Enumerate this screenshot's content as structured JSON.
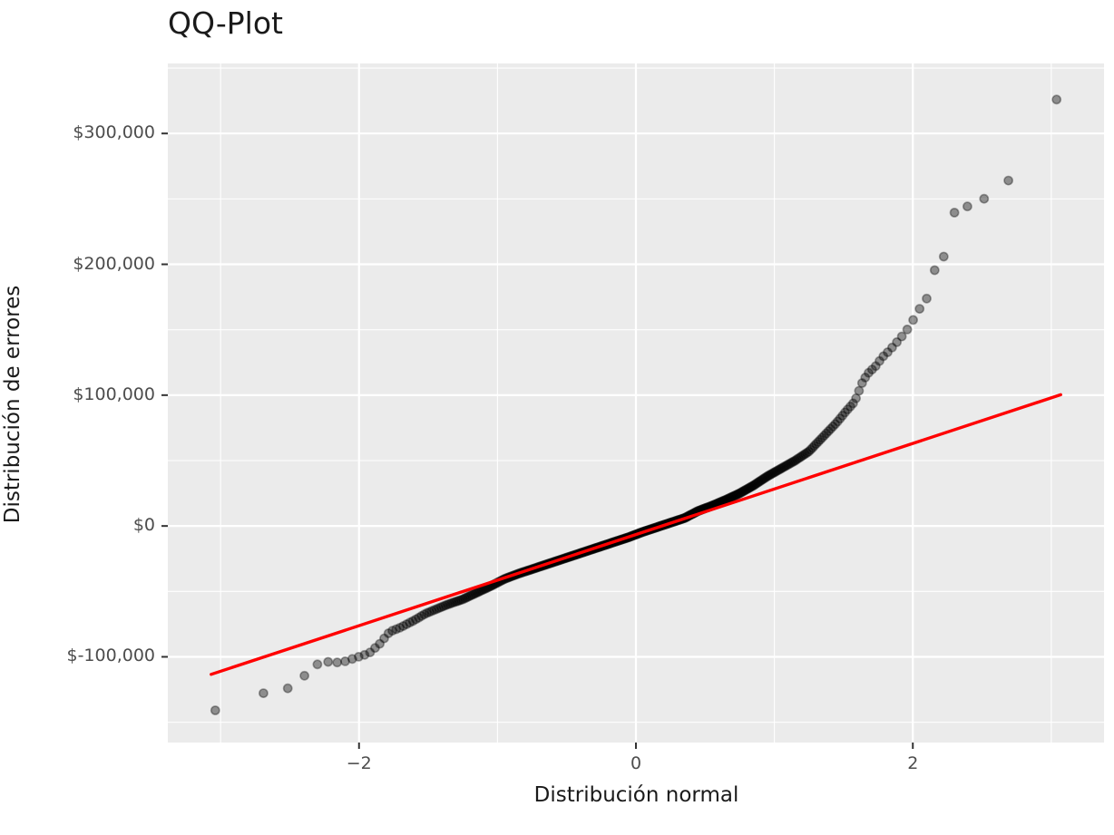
{
  "title": "QQ-Plot",
  "chart_data": {
    "type": "scatter",
    "title": "QQ-Plot",
    "xlabel": "Distribución normal",
    "ylabel": "Distribución de errores",
    "x_ticks": [
      {
        "value": -2,
        "label": "−2"
      },
      {
        "value": 0,
        "label": "0"
      },
      {
        "value": 2,
        "label": "2"
      }
    ],
    "y_ticks": [
      {
        "value": 300000,
        "label": "$300,000"
      },
      {
        "value": 200000,
        "label": "$200,000"
      },
      {
        "value": 100000,
        "label": "$100,000"
      },
      {
        "value": 0,
        "label": "$0"
      },
      {
        "value": -100000,
        "label": "$-100,000"
      }
    ],
    "x_minor": [
      -3,
      -1,
      1,
      3
    ],
    "y_minor": [
      350000,
      250000,
      150000,
      50000,
      -50000,
      -150000
    ],
    "xlim": [
      -3.381,
      3.381
    ],
    "ylim": [
      -165500,
      353500
    ],
    "grid": true,
    "legend": "none",
    "n_points": 420,
    "point_model": "empirical quantiles of 420 residuals vs standard normal quantiles; q_i = qnorm((i-0.5)/420), value interpolated from quantile_curve",
    "quantile_curve": [
      [
        -3.07,
        -142000
      ],
      [
        -2.9,
        -136000
      ],
      [
        -2.77,
        -131000
      ],
      [
        -2.62,
        -125000
      ],
      [
        -2.51,
        -124000
      ],
      [
        -2.42,
        -117000
      ],
      [
        -2.33,
        -108000
      ],
      [
        -2.27,
        -103500
      ],
      [
        -2.2,
        -104000
      ],
      [
        -2.13,
        -104500
      ],
      [
        -2.06,
        -102000
      ],
      [
        -1.99,
        -99500
      ],
      [
        -1.93,
        -97500
      ],
      [
        -1.85,
        -90000
      ],
      [
        -1.78,
        -81000
      ],
      [
        -1.7,
        -77500
      ],
      [
        -1.6,
        -72000
      ],
      [
        -1.52,
        -67000
      ],
      [
        -1.44,
        -63500
      ],
      [
        -1.36,
        -60000
      ],
      [
        -1.25,
        -56000
      ],
      [
        -1.15,
        -51000
      ],
      [
        -1.05,
        -46000
      ],
      [
        -0.95,
        -40500
      ],
      [
        -0.85,
        -36500
      ],
      [
        -0.75,
        -33000
      ],
      [
        -0.65,
        -29500
      ],
      [
        -0.55,
        -26000
      ],
      [
        -0.45,
        -22500
      ],
      [
        -0.35,
        -19000
      ],
      [
        -0.25,
        -15500
      ],
      [
        -0.15,
        -12000
      ],
      [
        -0.05,
        -8500
      ],
      [
        0.05,
        -4500
      ],
      [
        0.15,
        -1000
      ],
      [
        0.25,
        2500
      ],
      [
        0.35,
        6000
      ],
      [
        0.45,
        11500
      ],
      [
        0.55,
        15500
      ],
      [
        0.65,
        20000
      ],
      [
        0.75,
        25000
      ],
      [
        0.85,
        31000
      ],
      [
        0.95,
        38000
      ],
      [
        1.05,
        44000
      ],
      [
        1.15,
        50000
      ],
      [
        1.25,
        57000
      ],
      [
        1.35,
        68000
      ],
      [
        1.45,
        79000
      ],
      [
        1.52,
        88000
      ],
      [
        1.58,
        95000
      ],
      [
        1.61,
        103000
      ],
      [
        1.64,
        111000
      ],
      [
        1.68,
        117000
      ],
      [
        1.73,
        122000
      ],
      [
        1.78,
        129000
      ],
      [
        1.83,
        134000
      ],
      [
        1.88,
        140000
      ],
      [
        1.93,
        146000
      ],
      [
        1.98,
        153000
      ],
      [
        2.03,
        163000
      ],
      [
        2.08,
        171000
      ],
      [
        2.13,
        178000
      ],
      [
        2.16,
        197000
      ],
      [
        2.2,
        203000
      ],
      [
        2.24,
        208000
      ],
      [
        2.27,
        238000
      ],
      [
        2.33,
        241000
      ],
      [
        2.41,
        245000
      ],
      [
        2.49,
        249000
      ],
      [
        2.6,
        254000
      ],
      [
        2.66,
        256000
      ],
      [
        2.72,
        272000
      ],
      [
        2.78,
        278000
      ],
      [
        3.06,
        330000
      ]
    ],
    "reference_line": {
      "x1": -3.068,
      "y1": -113400,
      "x2": 3.068,
      "y2": 100300,
      "color": "#FF0000"
    },
    "colors": {
      "panel_bg": "#EBEBEB",
      "grid": "#FFFFFF",
      "tick_mark": "#333333",
      "tick_label": "#4D4D4D",
      "text": "#1A1A1A",
      "point_fill": "rgba(0,0,0,0.40)",
      "point_stroke": "rgba(0,0,0,0.35)"
    }
  }
}
